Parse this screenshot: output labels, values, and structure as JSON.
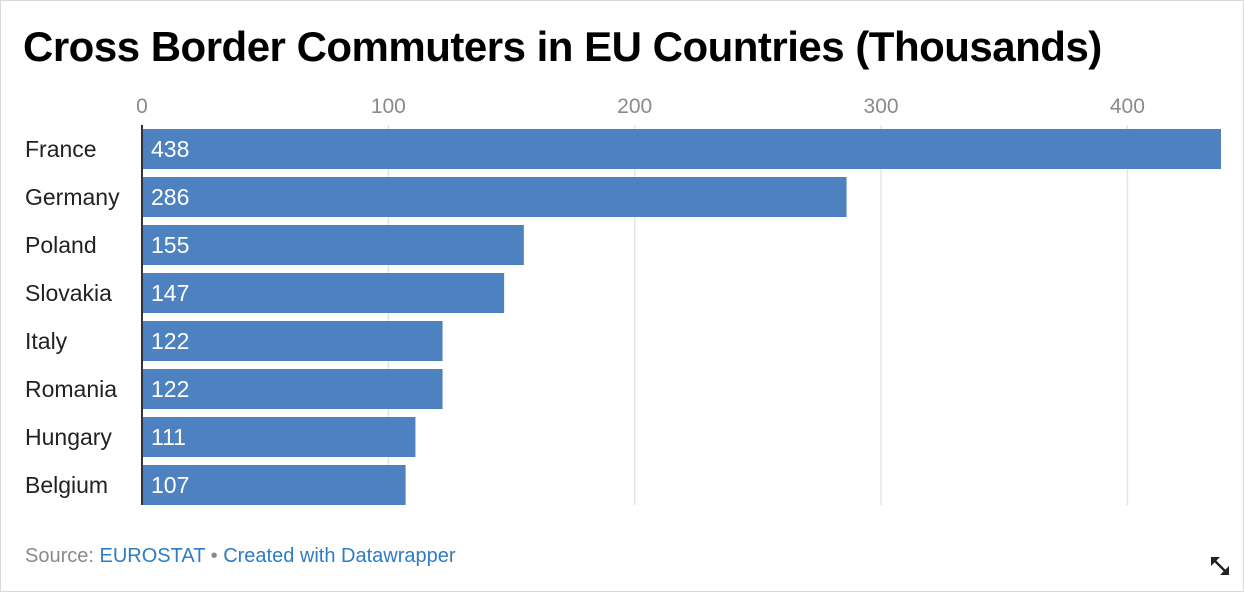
{
  "title": "Cross Border Commuters in EU Countries (Thousands)",
  "footer": {
    "source_prefix": "Source: ",
    "source_link": "EUROSTAT",
    "separator": " • ",
    "credit_link": "Created with Datawrapper"
  },
  "icons": {
    "expand": "expand-arrows-icon"
  },
  "colors": {
    "bar": "#4e81bf",
    "grid": "#e4e4e4",
    "axis": "#333333"
  },
  "chart_data": {
    "type": "bar",
    "orientation": "horizontal",
    "title": "Cross Border Commuters in EU Countries (Thousands)",
    "categories": [
      "France",
      "Germany",
      "Poland",
      "Slovakia",
      "Italy",
      "Romania",
      "Hungary",
      "Belgium"
    ],
    "values": [
      438,
      286,
      155,
      147,
      122,
      122,
      111,
      107
    ],
    "value_labels": [
      "438",
      "286",
      "155",
      "147",
      "122",
      "122",
      "111",
      "107"
    ],
    "xlim": [
      0,
      438
    ],
    "xticks": [
      0,
      100,
      200,
      300,
      400
    ],
    "xtick_labels": [
      "0",
      "100",
      "200",
      "300",
      "400"
    ],
    "axis_position": "top",
    "grid": true,
    "legend": "none"
  }
}
